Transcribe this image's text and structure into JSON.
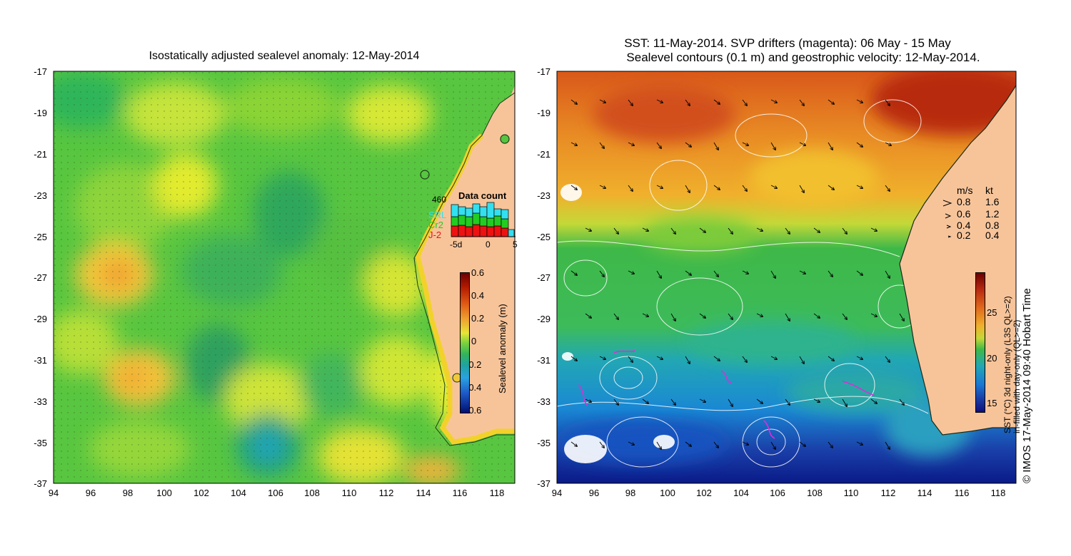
{
  "left": {
    "title": "Isostatically adjusted sealevel anomaly: 12-May-2014",
    "y_ticks": [
      "-17",
      "-19",
      "-21",
      "-23",
      "-25",
      "-27",
      "-29",
      "-31",
      "-33",
      "-35",
      "-37"
    ],
    "x_ticks": [
      "94",
      "96",
      "98",
      "100",
      "102",
      "104",
      "106",
      "108",
      "110",
      "112",
      "114",
      "116",
      "118"
    ],
    "colorbar": {
      "label": "Sealevel anomaly (m)",
      "ticks": [
        "0.6",
        "0.4",
        "0.2",
        "0",
        "-0.2",
        "-0.4",
        "-0.6"
      ]
    },
    "data_count": {
      "title": "Data count",
      "total": "460",
      "sources": [
        "SRL",
        "Cr2",
        "J-2"
      ],
      "source_colors": [
        "#33e0f0",
        "#22cc22",
        "#ee1111"
      ],
      "axis_ticks": [
        "-5d",
        "0",
        "5"
      ]
    },
    "colors": {
      "land": "#f7c49a",
      "ocean": "#56c53f"
    }
  },
  "right": {
    "title_line1": "SST: 11-May-2014. SVP drifters (magenta): 06 May - 15 May",
    "title_line2": "Sealevel contours (0.1 m) and geostrophic velocity: 12-May-2014.",
    "y_ticks": [
      "-17",
      "-19",
      "-21",
      "-23",
      "-25",
      "-27",
      "-29",
      "-31",
      "-33",
      "-35",
      "-37"
    ],
    "x_ticks": [
      "94",
      "96",
      "98",
      "100",
      "102",
      "104",
      "106",
      "108",
      "110",
      "112",
      "114",
      "116",
      "118"
    ],
    "speed_legend": {
      "header_ms": "m/s",
      "header_kt": "kt",
      "rows": [
        {
          "ms": "0.8",
          "kt": "1.6"
        },
        {
          "ms": "0.6",
          "kt": "1.2"
        },
        {
          "ms": "0.4",
          "kt": "0.8"
        },
        {
          "ms": "0.2",
          "kt": "0.4"
        }
      ]
    },
    "colorbar": {
      "label_line1": "SST (°C) 3d night-only (L3S QL>=2)",
      "label_line2": "in-filled with day-only (QL>=2)",
      "ticks": [
        "25",
        "20",
        "15"
      ]
    },
    "credit": "© IMOS 17-May-2014 09:40 Hobart Time"
  }
}
